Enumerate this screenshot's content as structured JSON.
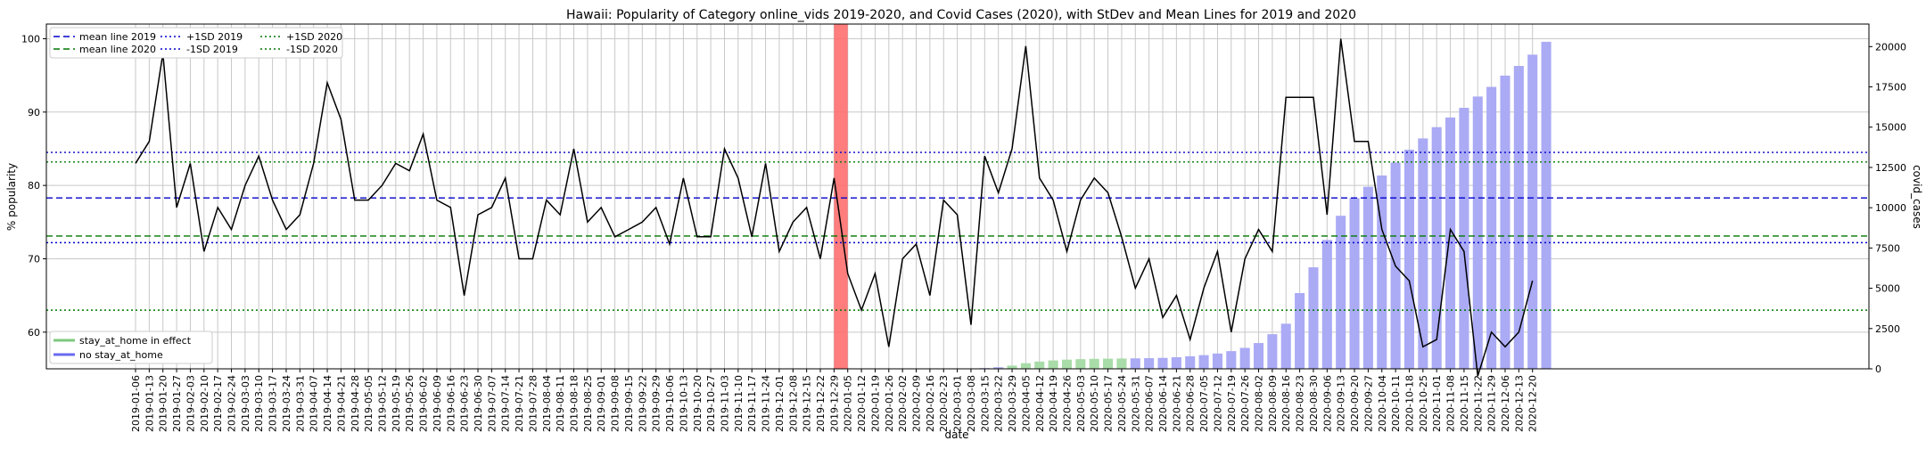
{
  "chart_data": {
    "type": "line",
    "title": "Hawaii: Popularity of Category online_vids 2019-2020, and Covid Cases (2020), with StDev and Mean Lines for 2019 and 2020",
    "xlabel": "date",
    "ylabel": "% popularity",
    "ylabel_right": "covid_cases",
    "ylim": [
      55,
      102
    ],
    "ylim_right": [
      0,
      21400
    ],
    "yticks": [
      60,
      70,
      80,
      90,
      100
    ],
    "yticks_right": [
      0,
      2500,
      5000,
      7500,
      10000,
      12500,
      15000,
      17500,
      20000
    ],
    "dates": [
      "2019-01-06",
      "2019-01-13",
      "2019-01-20",
      "2019-01-27",
      "2019-02-03",
      "2019-02-10",
      "2019-02-17",
      "2019-02-24",
      "2019-03-03",
      "2019-03-10",
      "2019-03-17",
      "2019-03-24",
      "2019-03-31",
      "2019-04-07",
      "2019-04-14",
      "2019-04-21",
      "2019-04-28",
      "2019-05-05",
      "2019-05-12",
      "2019-05-19",
      "2019-05-26",
      "2019-06-02",
      "2019-06-09",
      "2019-06-16",
      "2019-06-23",
      "2019-06-30",
      "2019-07-07",
      "2019-07-14",
      "2019-07-21",
      "2019-07-28",
      "2019-08-04",
      "2019-08-11",
      "2019-08-18",
      "2019-08-25",
      "2019-09-01",
      "2019-09-08",
      "2019-09-15",
      "2019-09-22",
      "2019-09-29",
      "2019-10-06",
      "2019-10-13",
      "2019-10-20",
      "2019-10-27",
      "2019-11-03",
      "2019-11-10",
      "2019-11-17",
      "2019-11-24",
      "2019-12-01",
      "2019-12-08",
      "2019-12-15",
      "2019-12-22",
      "2019-12-29",
      "2020-01-05",
      "2020-01-12",
      "2020-01-19",
      "2020-01-26",
      "2020-02-02",
      "2020-02-09",
      "2020-02-16",
      "2020-02-23",
      "2020-03-01",
      "2020-03-08",
      "2020-03-15",
      "2020-03-22",
      "2020-03-29",
      "2020-04-05",
      "2020-04-12",
      "2020-04-19",
      "2020-04-26",
      "2020-05-03",
      "2020-05-10",
      "2020-05-17",
      "2020-05-24",
      "2020-05-31",
      "2020-06-07",
      "2020-06-14",
      "2020-06-21",
      "2020-06-28",
      "2020-07-05",
      "2020-07-12",
      "2020-07-19",
      "2020-07-26",
      "2020-08-02",
      "2020-08-09",
      "2020-08-16",
      "2020-08-23",
      "2020-08-30",
      "2020-09-06",
      "2020-09-13",
      "2020-09-20",
      "2020-09-27",
      "2020-10-04",
      "2020-10-11",
      "2020-10-18",
      "2020-10-25",
      "2020-11-01",
      "2020-11-08",
      "2020-11-15",
      "2020-11-22",
      "2020-11-29",
      "2020-12-06",
      "2020-12-13",
      "2020-12-20"
    ],
    "popularity": [
      83,
      86,
      98,
      77,
      83,
      71,
      77,
      74,
      80,
      84,
      78,
      74,
      76,
      83,
      94,
      89,
      78,
      78,
      80,
      83,
      82,
      87,
      78,
      77,
      65,
      76,
      77,
      81,
      70,
      70,
      78,
      76,
      85,
      75,
      77,
      73,
      74,
      75,
      77,
      72,
      81,
      73,
      73,
      85,
      81,
      73,
      83,
      71,
      75,
      77,
      70,
      81,
      68,
      63,
      68,
      58,
      70,
      72,
      65,
      78,
      76,
      61,
      84,
      79,
      85,
      99,
      81,
      78,
      71,
      78,
      81,
      79,
      73,
      66,
      70,
      62,
      65,
      59,
      66,
      71,
      60,
      70,
      74,
      71,
      92,
      92,
      92,
      76,
      100,
      86,
      86,
      74,
      69,
      67,
      58,
      59,
      74,
      71,
      54,
      60,
      58,
      60,
      67
    ],
    "covid_cases": [
      null,
      null,
      null,
      null,
      null,
      null,
      null,
      null,
      null,
      null,
      null,
      null,
      null,
      null,
      null,
      null,
      null,
      null,
      null,
      null,
      null,
      null,
      null,
      null,
      null,
      null,
      null,
      null,
      null,
      null,
      null,
      null,
      null,
      null,
      null,
      null,
      null,
      null,
      null,
      null,
      null,
      null,
      null,
      null,
      null,
      null,
      null,
      null,
      null,
      null,
      null,
      null,
      0,
      0,
      0,
      0,
      0,
      0,
      0,
      0,
      0,
      0,
      20,
      100,
      200,
      350,
      450,
      520,
      570,
      600,
      620,
      630,
      640,
      650,
      660,
      680,
      720,
      780,
      850,
      950,
      1100,
      1300,
      1600,
      2150,
      2800,
      4700,
      6300,
      8000,
      9500,
      10600,
      11300,
      12000,
      12800,
      13600,
      14300,
      15000,
      15600,
      16200,
      16900,
      17500,
      18200,
      18800,
      19500,
      20300
    ],
    "stay_at_home": [
      false,
      false,
      false,
      false,
      false,
      false,
      false,
      false,
      false,
      false,
      false,
      false,
      false,
      false,
      false,
      false,
      false,
      false,
      false,
      false,
      false,
      false,
      false,
      false,
      false,
      false,
      false,
      false,
      false,
      false,
      false,
      false,
      false,
      false,
      false,
      false,
      false,
      false,
      false,
      false,
      false,
      false,
      false,
      false,
      false,
      false,
      false,
      false,
      false,
      false,
      false,
      false,
      false,
      false,
      false,
      false,
      false,
      false,
      false,
      false,
      false,
      false,
      false,
      false,
      true,
      true,
      true,
      true,
      true,
      true,
      true,
      true,
      true,
      false,
      false,
      false,
      false,
      false,
      false,
      false,
      false,
      false,
      false,
      false,
      false,
      false,
      false,
      false,
      false,
      false,
      false,
      false,
      false,
      false,
      false,
      false,
      false,
      false,
      false,
      false,
      false,
      false,
      false
    ],
    "highlight_date_range": [
      "2019-12-29",
      "2020-01-05"
    ],
    "reference_lines": [
      {
        "name": "mean line 2019",
        "value": 78.3,
        "color": "#0000cc",
        "style": "dashed"
      },
      {
        "name": "mean line 2020",
        "value": 73.1,
        "color": "#007700",
        "style": "dashed"
      },
      {
        "name": "+1SD 2019",
        "value": 84.5,
        "color": "#0000cc",
        "style": "dotted"
      },
      {
        "name": "-1SD 2019",
        "value": 72.2,
        "color": "#0000cc",
        "style": "dotted"
      },
      {
        "name": "+1SD 2020",
        "value": 83.2,
        "color": "#007700",
        "style": "dotted"
      },
      {
        "name": "-1SD 2020",
        "value": 63.0,
        "color": "#007700",
        "style": "dotted"
      }
    ],
    "bar_legend": [
      {
        "name": "stay_at_home in effect",
        "color": "#7fc97f"
      },
      {
        "name": "no stay_at_home",
        "color": "#6a6af0"
      }
    ],
    "colors": {
      "line": "#000000",
      "highlight": "#ff6666",
      "bar_no_stay": "#aaaaf5",
      "bar_stay": "#a8dca8",
      "grid": "#c8c8c8"
    },
    "grid": true,
    "legend_position": "top-left",
    "bar_legend_position": "bottom-left"
  }
}
